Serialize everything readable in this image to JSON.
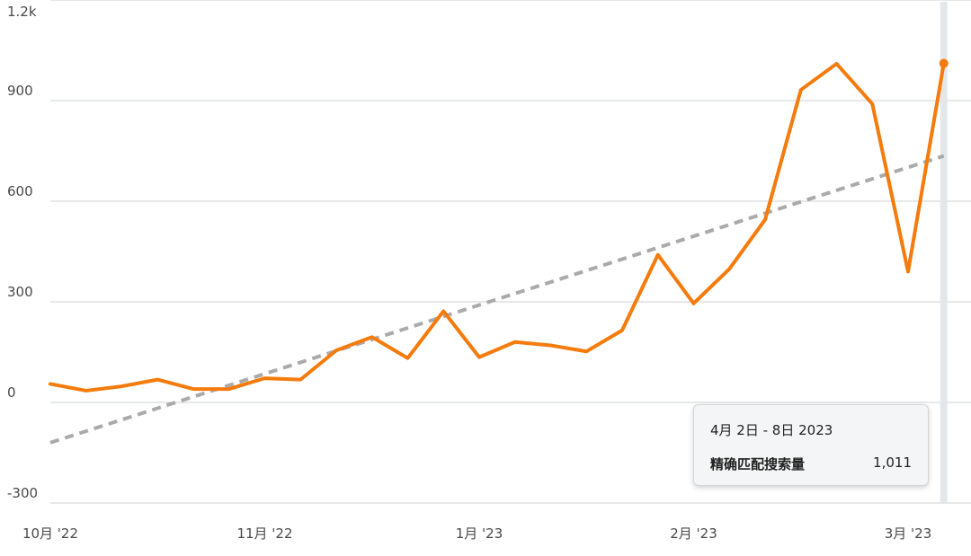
{
  "chart_data": {
    "type": "line",
    "y_ticks": [
      "1.2k",
      "900",
      "600",
      "300",
      "0",
      "-300"
    ],
    "y_tick_values": [
      1200,
      900,
      600,
      300,
      0,
      -300
    ],
    "ylim": [
      -300,
      1200
    ],
    "x_ticks": [
      {
        "label": "10月 '22",
        "week": 0
      },
      {
        "label": "11月 '22",
        "week": 6
      },
      {
        "label": "1月 '23",
        "week": 12
      },
      {
        "label": "2月 '23",
        "week": 18
      },
      {
        "label": "3月 '23",
        "week": 24
      }
    ],
    "series": [
      {
        "values": [
          55,
          35,
          48,
          68,
          40,
          40,
          72,
          68,
          155,
          195,
          132,
          272,
          135,
          180,
          170,
          152,
          215,
          440,
          295,
          398,
          545,
          932,
          1010,
          890,
          390,
          1011
        ],
        "color": "#f47b0c"
      }
    ],
    "trendline": {
      "start": -120,
      "end": 735,
      "color": "#aaaaaa",
      "style": "dashed"
    },
    "highlight_index": 25,
    "legend": "none",
    "grid": true
  },
  "tooltip": {
    "title": "4月 2日 - 8日 2023",
    "series_name": "精确匹配搜索量",
    "value": "1,011"
  }
}
